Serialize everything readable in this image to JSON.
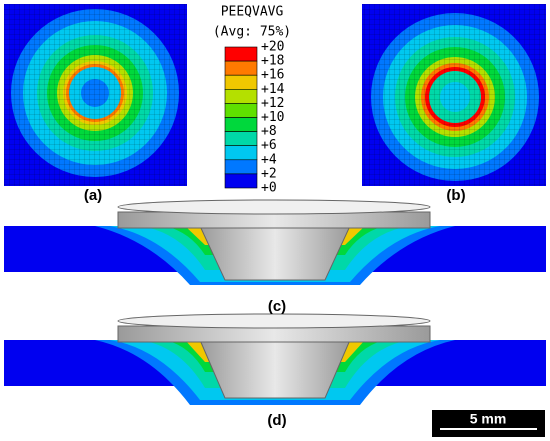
{
  "legend": {
    "title": "PEEQVAVG",
    "subtitle": "(Avg: 75%)",
    "labels": [
      "+20",
      "+18",
      "+16",
      "+14",
      "+12",
      "+10",
      "+8",
      "+6",
      "+4",
      "+2",
      "+0"
    ],
    "colors": [
      "#ff0000",
      "#ff7a00",
      "#f0c800",
      "#b4e000",
      "#5fe000",
      "#00d83c",
      "#00d8a8",
      "#00c8f0",
      "#0078ff",
      "#0000f0"
    ]
  },
  "panels": [
    "(a)",
    "(b)",
    "(c)",
    "(d)"
  ],
  "scale_bar": "5 mm"
}
